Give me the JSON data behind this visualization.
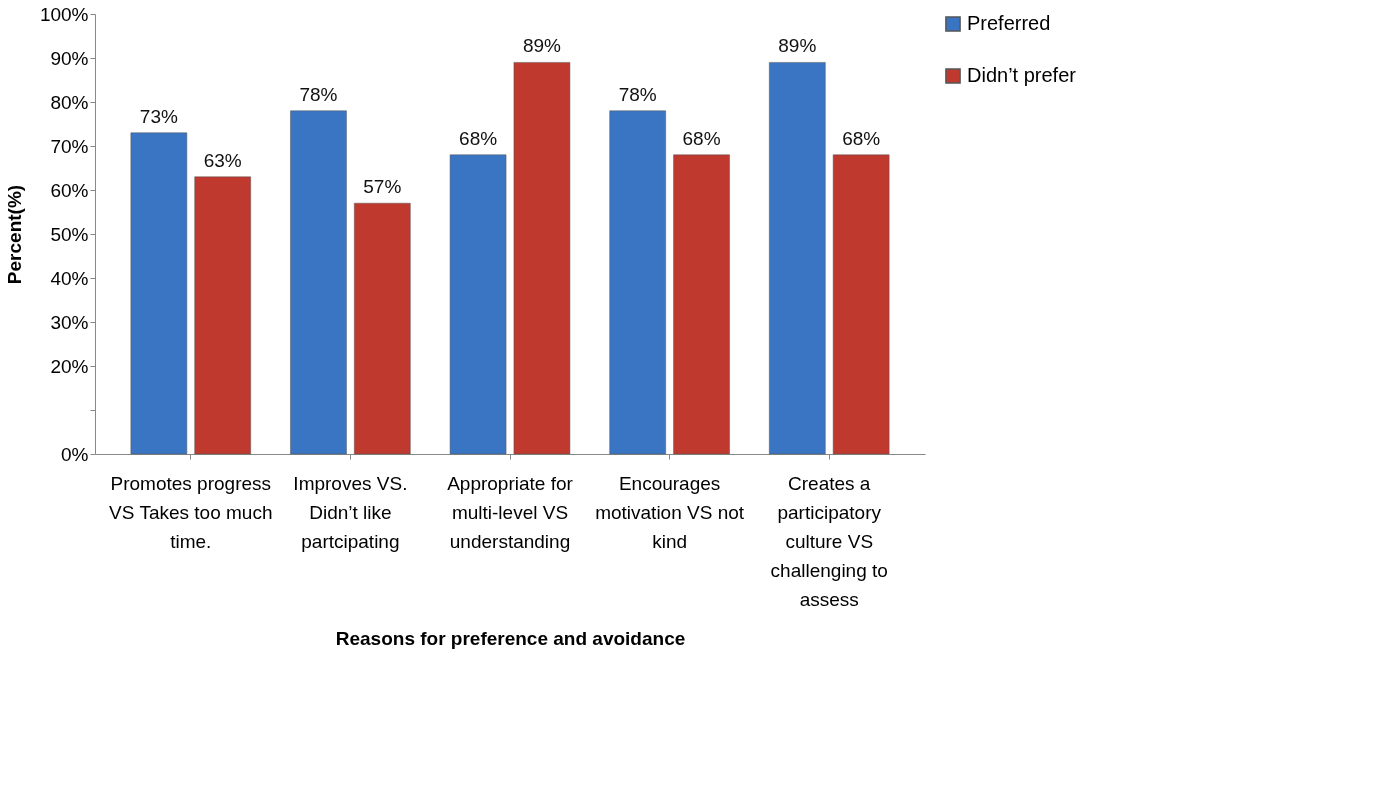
{
  "chart_data": {
    "type": "bar",
    "xlabel": "Reasons for preference and avoidance",
    "ylabel": "Percent(%)",
    "categories": [
      "Promotes progress VS Takes too much time.",
      "Improves VS. Didn’t like partcipating",
      "Appropriate for multi-level VS understanding",
      "Encourages motivation VS not kind",
      "Creates a participatory culture VS challenging to assess"
    ],
    "series": [
      {
        "name": "Preferred",
        "color": "#3a75c4",
        "values": [
          73,
          78,
          68,
          78,
          89
        ],
        "value_labels": [
          "73%",
          "78%",
          "68%",
          "78%",
          "89%"
        ]
      },
      {
        "name": "Didn’t prefer",
        "color": "#c0392f",
        "values": [
          63,
          57,
          89,
          68,
          68
        ],
        "value_labels": [
          "63%",
          "57%",
          "89%",
          "68%",
          "68%"
        ]
      }
    ],
    "ylim": [
      0,
      100
    ],
    "yticks": [
      {
        "value": 0,
        "label": "0%"
      },
      {
        "value": 10,
        "label": null
      },
      {
        "value": 20,
        "label": "20%"
      },
      {
        "value": 30,
        "label": "30%"
      },
      {
        "value": 40,
        "label": "40%"
      },
      {
        "value": 50,
        "label": "50%"
      },
      {
        "value": 60,
        "label": "60%"
      },
      {
        "value": 70,
        "label": "70%"
      },
      {
        "value": 80,
        "label": "80%"
      },
      {
        "value": 90,
        "label": "90%"
      },
      {
        "value": 100,
        "label": "100%"
      }
    ],
    "grid": false,
    "legend": "right"
  }
}
